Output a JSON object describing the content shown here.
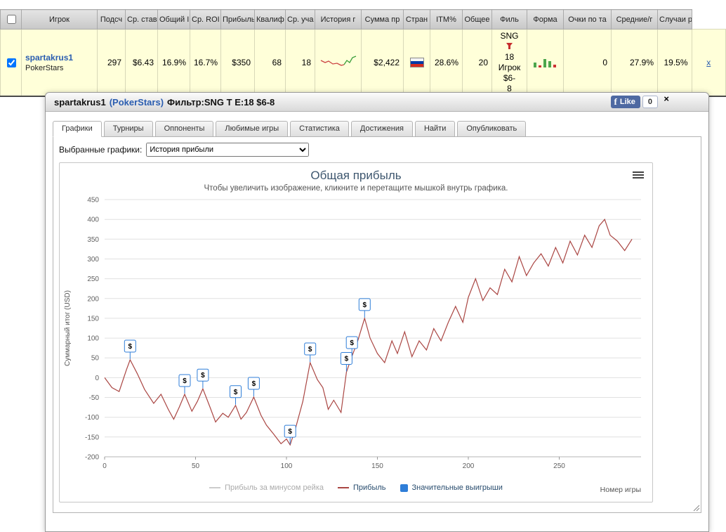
{
  "results_table": {
    "headers": [
      "Игрок",
      "Подсч",
      "Ср. став",
      "Общий I",
      "Ср. ROI",
      "Прибыль",
      "Квалиф",
      "Ср. уча",
      "История г",
      "Сумма пр",
      "Стран",
      "ITM%",
      "Общее",
      "Филь",
      "Форма",
      "Очки по та",
      "Средние/г",
      "Случаи ра"
    ],
    "row": {
      "player": "spartakrus1",
      "site": "PokerStars",
      "count": "297",
      "avg_stake": "$6.43",
      "total_roi": "16.9%",
      "avg_roi": "16.7%",
      "profit": "$350",
      "qualified": "68",
      "avg_entrants": "18",
      "prize_sum": "$2,422",
      "country": "Russia",
      "itm": "28.6%",
      "total": "20",
      "filter_lines": [
        "SNG",
        "18",
        "Игрок",
        "$6-",
        "8"
      ],
      "points": "0",
      "avg_score": "27.9%",
      "cases": "19.5%",
      "remove_label": "x"
    }
  },
  "panel": {
    "title": {
      "player": "spartakrus1",
      "site": "(PokerStars)",
      "filter": "Фильтр:SNG T E:18 $6-8"
    },
    "facebook": {
      "like_label": "Like",
      "count": "0"
    },
    "close_label": "×",
    "tabs": [
      {
        "id": "grafiki",
        "label": "Графики",
        "active": true
      },
      {
        "id": "turniry",
        "label": "Турниры",
        "active": false
      },
      {
        "id": "opponenty",
        "label": "Оппоненты",
        "active": false
      },
      {
        "id": "lyubimye-igry",
        "label": "Любимые игры",
        "active": false
      },
      {
        "id": "statistika",
        "label": "Статистика",
        "active": false
      },
      {
        "id": "dostizheniya",
        "label": "Достижения",
        "active": false
      },
      {
        "id": "najti",
        "label": "Найти",
        "active": false
      },
      {
        "id": "opublikovat",
        "label": "Опубликовать",
        "active": false
      }
    ],
    "graph_selector": {
      "label": "Выбранные графики:",
      "value": "История прибыли"
    }
  },
  "chart_data": {
    "type": "line",
    "title": "Общая прибыль",
    "subtitle": "Чтобы увеличить изображение, кликните и перетащите мышкой внутрь графика.",
    "xlabel": "Номер игры",
    "ylabel": "Суммарный итог (USD)",
    "xlim": [
      0,
      295
    ],
    "ylim": [
      -200,
      450
    ],
    "xticks": [
      0,
      50,
      100,
      150,
      200,
      250
    ],
    "yticks": [
      -200,
      -150,
      -100,
      -50,
      0,
      50,
      100,
      150,
      200,
      250,
      300,
      350,
      400,
      450
    ],
    "grid": true,
    "legend_position": "bottom",
    "series": [
      {
        "name": "Прибыль за минусом рейка",
        "color": "#cccccc",
        "visible": false
      },
      {
        "name": "Прибыль",
        "color": "#AA4643",
        "visible": true,
        "x": [
          0,
          4,
          8,
          12,
          14,
          18,
          22,
          27,
          31,
          35,
          38,
          41,
          44,
          48,
          51,
          54,
          58,
          61,
          65,
          68,
          72,
          75,
          78,
          82,
          86,
          89,
          93,
          97,
          100,
          102,
          105,
          109,
          113,
          117,
          120,
          123,
          126,
          130,
          133,
          136,
          139,
          143,
          146,
          150,
          154,
          158,
          161,
          165,
          169,
          173,
          177,
          181,
          185,
          189,
          193,
          197,
          200,
          204,
          208,
          212,
          216,
          220,
          224,
          228,
          232,
          236,
          240,
          244,
          248,
          252,
          256,
          260,
          264,
          268,
          272,
          275,
          278,
          282,
          286,
          290
        ],
        "y": [
          0,
          -25,
          -35,
          20,
          45,
          10,
          -30,
          -65,
          -42,
          -80,
          -105,
          -75,
          -42,
          -85,
          -60,
          -28,
          -75,
          -112,
          -90,
          -100,
          -70,
          -105,
          -88,
          -49,
          -95,
          -120,
          -143,
          -167,
          -155,
          -170,
          -128,
          -60,
          38,
          -5,
          -25,
          -80,
          -57,
          -88,
          14,
          54,
          90,
          150,
          100,
          61,
          38,
          93,
          61,
          116,
          53,
          93,
          70,
          124,
          93,
          140,
          180,
          140,
          203,
          250,
          195,
          227,
          210,
          274,
          242,
          306,
          258,
          290,
          313,
          282,
          329,
          290,
          345,
          310,
          360,
          329,
          384,
          400,
          360,
          345,
          321,
          350
        ]
      },
      {
        "name": "Значительные выигрыши",
        "type": "flags",
        "color": "#2f7ed8",
        "symbol": "$",
        "flag_x": [
          14,
          44,
          54,
          72,
          82,
          102,
          113,
          133,
          136,
          143
        ]
      }
    ]
  }
}
